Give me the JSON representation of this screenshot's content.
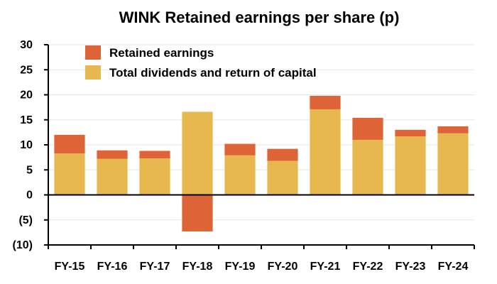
{
  "chart_data": {
    "type": "bar",
    "stacked": true,
    "title": "WINK Retained earnings per share (p)",
    "xlabel": "",
    "ylabel": "",
    "categories": [
      "FY-15",
      "FY-16",
      "FY-17",
      "FY-18",
      "FY-19",
      "FY-20",
      "FY-21",
      "FY-22",
      "FY-23",
      "FY-24"
    ],
    "series": [
      {
        "name": "Total dividends and return of capital",
        "color": "#E8B850",
        "values": [
          8.3,
          7.2,
          7.3,
          16.6,
          7.9,
          6.8,
          17.1,
          11.0,
          11.7,
          12.3
        ]
      },
      {
        "name": "Retained earnings",
        "color": "#DE6437",
        "values": [
          3.7,
          1.7,
          1.5,
          -7.3,
          2.3,
          2.4,
          2.7,
          4.4,
          1.3,
          1.4
        ]
      }
    ],
    "ylim": [
      -10,
      30
    ],
    "yticks": [
      30,
      25,
      20,
      15,
      10,
      5,
      0,
      -5,
      -10
    ],
    "ytick_labels": [
      "30",
      "25",
      "20",
      "15",
      "10",
      "5",
      "0",
      "(5)",
      "(10)"
    ],
    "grid": true,
    "legend_position": "top-left"
  }
}
